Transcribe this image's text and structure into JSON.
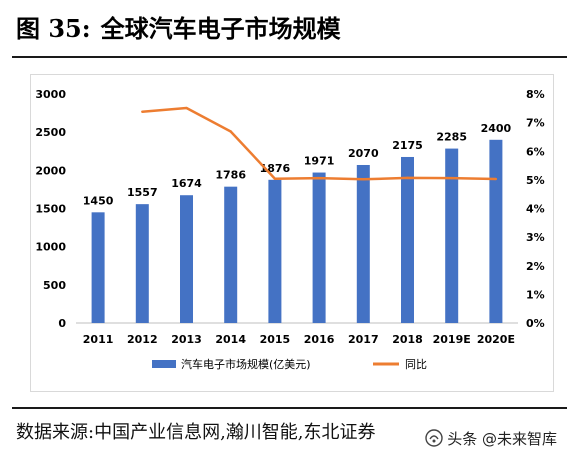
{
  "figure": {
    "label": "图 35:",
    "title": "全球汽车电子市场规模"
  },
  "source_text": "数据来源:中国产业信息网,瀚川智能,东北证券",
  "watermark": {
    "text": "头条 @未来智库"
  },
  "colors": {
    "bar": "#4472C4",
    "line": "#ED7D31",
    "axis": "#bfbfbf"
  },
  "chart_data": {
    "type": "bar+line",
    "categories": [
      "2011",
      "2012",
      "2013",
      "2014",
      "2015",
      "2016",
      "2017",
      "2018",
      "2019E",
      "2020E"
    ],
    "series": [
      {
        "name": "汽车电子市场规模(亿美元)",
        "type": "bar",
        "axis": "left",
        "values": [
          1450,
          1557,
          1674,
          1786,
          1876,
          1971,
          2070,
          2175,
          2285,
          2400
        ],
        "labels": [
          "1450",
          "1557",
          "1674",
          "1786",
          "1876",
          "1971",
          "2070",
          "2175",
          "2285",
          "2400"
        ]
      },
      {
        "name": "同比",
        "type": "line",
        "axis": "right",
        "values": [
          null,
          7.38,
          7.51,
          6.69,
          5.04,
          5.06,
          5.02,
          5.07,
          5.06,
          5.03
        ]
      }
    ],
    "y_left": {
      "min": 0,
      "max": 3000,
      "step": 500,
      "ticks": [
        "0",
        "500",
        "1000",
        "1500",
        "2000",
        "2500",
        "3000"
      ]
    },
    "y_right": {
      "min": 0,
      "max": 8,
      "step": 1,
      "ticks": [
        "0%",
        "1%",
        "2%",
        "3%",
        "4%",
        "5%",
        "6%",
        "7%",
        "8%"
      ]
    },
    "grid": false,
    "legend_position": "bottom"
  }
}
